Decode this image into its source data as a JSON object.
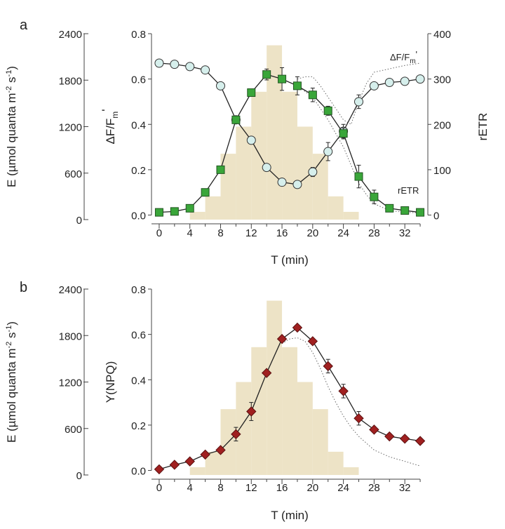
{
  "chart_data": [
    {
      "panel_label": "a",
      "type": "line",
      "x": [
        0,
        2,
        4,
        6,
        8,
        10,
        12,
        14,
        16,
        18,
        20,
        22,
        24,
        26,
        28,
        30,
        32,
        34
      ],
      "xlabel": "T (min)",
      "xlim": [
        -1,
        35
      ],
      "xticks": [
        "0",
        "4",
        "8",
        "12",
        "16",
        "20",
        "24",
        "28",
        "32"
      ],
      "light_axis": {
        "label_prefix": "E (µmol quanta m",
        "label_exp1": "-2",
        "label_mid": " s",
        "label_exp2": "-1",
        "label_suffix": ")",
        "ylim": [
          0,
          2400
        ],
        "ticks": [
          "0",
          "600",
          "1200",
          "1800",
          "2400"
        ]
      },
      "left_axis": {
        "label_main": "ΔF/F",
        "label_sub": "m",
        "label_prime": "'",
        "ylim": [
          -0.02,
          0.8
        ],
        "ticks": [
          "0.0",
          "0.2",
          "0.4",
          "0.6",
          "0.8"
        ]
      },
      "right_axis": {
        "label": "rETR",
        "ylim": [
          -10,
          400
        ],
        "ticks": [
          "0",
          "100",
          "200",
          "300",
          "400"
        ]
      },
      "irradiance_bars": {
        "edges": [
          4,
          6,
          8,
          10,
          12,
          14,
          16,
          18,
          20,
          22,
          24,
          26,
          28
        ],
        "values": [
          100,
          300,
          850,
          1200,
          1650,
          2250,
          1650,
          1200,
          850,
          300,
          100,
          0
        ]
      },
      "series": [
        {
          "name": "ΔF/Fm'",
          "axis": "left",
          "marker": "circle",
          "color": "#d6efec",
          "values": [
            0.67,
            0.665,
            0.655,
            0.64,
            0.57,
            0.42,
            0.33,
            0.21,
            0.145,
            0.135,
            0.19,
            0.28,
            0.37,
            0.5,
            0.57,
            0.585,
            0.59,
            0.6
          ],
          "errors": [
            0,
            0,
            0,
            0,
            0,
            0,
            0,
            0,
            0,
            0,
            0.02,
            0.04,
            0.03,
            0.03,
            0,
            0,
            0,
            0
          ]
        },
        {
          "name": "rETR",
          "axis": "right",
          "marker": "square",
          "color": "#3aa63a",
          "values": [
            6,
            8,
            15,
            50,
            100,
            210,
            270,
            310,
            300,
            285,
            265,
            230,
            180,
            85,
            40,
            15,
            10,
            6
          ],
          "errors": [
            0,
            0,
            0,
            0,
            0,
            0,
            0,
            12,
            25,
            20,
            15,
            10,
            12,
            25,
            15,
            8,
            0,
            0
          ]
        }
      ],
      "reference_curves": [
        {
          "label": "ΔF/Fm'",
          "axis": "left",
          "x": [
            18,
            19,
            20,
            21,
            22,
            23,
            24,
            25,
            26,
            27,
            28,
            30,
            32,
            34
          ],
          "values": [
            0.6,
            0.61,
            0.61,
            0.57,
            0.52,
            0.47,
            0.42,
            0.4,
            0.5,
            0.58,
            0.63,
            0.645,
            0.66,
            0.67
          ]
        },
        {
          "label": "rETR",
          "axis": "right",
          "x": [
            18,
            20,
            22,
            23,
            24,
            25,
            26,
            27,
            28,
            30,
            32,
            34
          ],
          "values": [
            285,
            260,
            210,
            180,
            150,
            110,
            70,
            45,
            25,
            10,
            6,
            5
          ]
        }
      ],
      "annotations": {
        "dff_label_main": "ΔF/F",
        "dff_label_sub": "m",
        "dff_label_prime": "'",
        "retr_label": "rETR"
      }
    },
    {
      "panel_label": "b",
      "type": "line",
      "x": [
        0,
        2,
        4,
        6,
        8,
        10,
        12,
        14,
        16,
        18,
        20,
        22,
        24,
        26,
        28,
        30,
        32,
        34
      ],
      "xlabel": "T (min)",
      "xlim": [
        -1,
        35
      ],
      "xticks": [
        "0",
        "4",
        "8",
        "12",
        "16",
        "20",
        "24",
        "28",
        "32"
      ],
      "light_axis": {
        "label_prefix": "E (µmol quanta m",
        "label_exp1": "-2",
        "label_mid": " s",
        "label_exp2": "-1",
        "label_suffix": ")",
        "ylim": [
          0,
          2400
        ],
        "ticks": [
          "0",
          "600",
          "1200",
          "1800",
          "2400"
        ]
      },
      "left_axis": {
        "label": "Y(NPQ)",
        "ylim": [
          -0.02,
          0.8
        ],
        "ticks": [
          "0.0",
          "0.2",
          "0.4",
          "0.6",
          "0.8"
        ]
      },
      "irradiance_bars": {
        "edges": [
          4,
          6,
          8,
          10,
          12,
          14,
          16,
          18,
          20,
          22,
          24,
          26,
          28
        ],
        "values": [
          100,
          300,
          850,
          1200,
          1650,
          2250,
          1650,
          1200,
          850,
          300,
          100,
          0
        ]
      },
      "series": [
        {
          "name": "Y(NPQ)",
          "axis": "left",
          "marker": "diamond",
          "color": "#a02020",
          "values": [
            0.005,
            0.025,
            0.04,
            0.07,
            0.09,
            0.16,
            0.26,
            0.43,
            0.58,
            0.63,
            0.57,
            0.46,
            0.35,
            0.23,
            0.18,
            0.15,
            0.14,
            0.13
          ],
          "errors": [
            0,
            0,
            0,
            0,
            0.01,
            0.03,
            0.04,
            0,
            0,
            0,
            0,
            0.03,
            0.03,
            0.03,
            0,
            0,
            0,
            0
          ]
        }
      ],
      "reference_curves": [
        {
          "label": "",
          "axis": "left",
          "x": [
            16,
            17,
            18,
            19,
            20,
            21,
            22,
            23,
            24,
            25,
            26,
            27,
            28,
            30,
            32,
            34
          ],
          "values": [
            0.56,
            0.58,
            0.585,
            0.57,
            0.52,
            0.45,
            0.37,
            0.3,
            0.24,
            0.19,
            0.15,
            0.12,
            0.09,
            0.06,
            0.04,
            0.02
          ]
        }
      ]
    }
  ]
}
